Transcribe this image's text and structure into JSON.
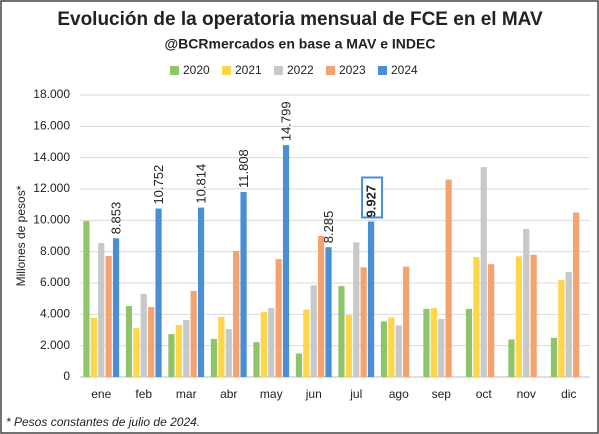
{
  "chart_data": {
    "type": "bar",
    "title": "Evolución de la operatoria mensual de FCE en el MAV",
    "subtitle": "@BCRmercados en base a MAV e INDEC",
    "y_label": "Millones de pesos*",
    "footnote": "* Pesos constantes de julio de 2024.",
    "categories": [
      "ene",
      "feb",
      "mar",
      "abr",
      "may",
      "jun",
      "jul",
      "ago",
      "sep",
      "oct",
      "nov",
      "dic"
    ],
    "series": [
      {
        "name": "2020",
        "color": "#8fc46a",
        "values": [
          9950,
          4530,
          2740,
          2430,
          2230,
          1500,
          5800,
          3550,
          4350,
          4350,
          2400,
          2500
        ]
      },
      {
        "name": "2021",
        "color": "#ffd54a",
        "values": [
          3770,
          3130,
          3320,
          3830,
          4150,
          4300,
          3950,
          3800,
          4400,
          7650,
          7700,
          6200
        ]
      },
      {
        "name": "2022",
        "color": "#c8c8c8",
        "values": [
          8550,
          5300,
          3640,
          3060,
          4400,
          5850,
          8600,
          3300,
          3700,
          13400,
          9450,
          6700
        ]
      },
      {
        "name": "2023",
        "color": "#f4a26f",
        "values": [
          7720,
          4470,
          5490,
          8040,
          7530,
          9000,
          7000,
          7050,
          12600,
          7200,
          7800,
          10500
        ]
      },
      {
        "name": "2024",
        "color": "#4a8fd6",
        "values": [
          8853,
          10752,
          10814,
          11808,
          14799,
          8285,
          9927,
          null,
          null,
          null,
          null,
          null
        ],
        "value_labels": [
          "8.853",
          "10.752",
          "10.814",
          "11.808",
          "14.799",
          "8.285",
          "9.927",
          null,
          null,
          null,
          null,
          null
        ]
      }
    ],
    "ylim": [
      0,
      18000
    ],
    "yticks": [
      0,
      {
        "value": 2000,
        "label": "2.000"
      },
      {
        "value": 4000,
        "label": "4.000"
      },
      {
        "value": 6000,
        "label": "6.000"
      },
      {
        "value": 8000,
        "label": "8.000"
      },
      {
        "value": 10000,
        "label": "10.000"
      },
      {
        "value": 12000,
        "label": "12.000"
      },
      {
        "value": 14000,
        "label": "14.000"
      },
      {
        "value": 16000,
        "label": "16.000"
      },
      {
        "value": 18000,
        "label": "18.000"
      }
    ],
    "grid": true,
    "legend": "top"
  }
}
